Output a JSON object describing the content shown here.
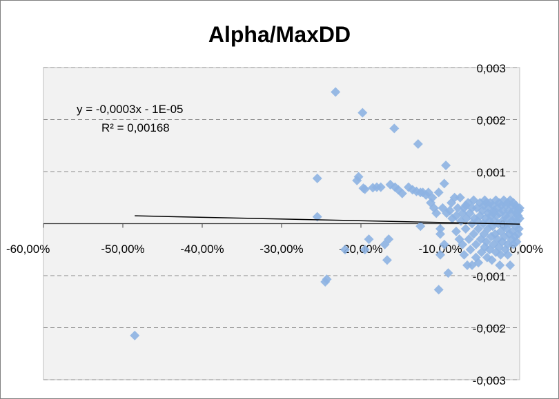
{
  "chart_data": {
    "type": "scatter",
    "title": "Alpha/MaxDD",
    "xlabel": "",
    "ylabel": "",
    "xlim": [
      -0.6,
      0.0
    ],
    "ylim": [
      -0.003,
      0.003
    ],
    "x_tick_values": [
      -0.6,
      -0.5,
      -0.4,
      -0.3,
      -0.2,
      -0.1,
      0.0
    ],
    "x_tick_labels": [
      "-60,00%",
      "-50,00%",
      "-40,00%",
      "-30,00%",
      "-20,00%",
      "-10,00%",
      "0,00%"
    ],
    "y_tick_values": [
      0.003,
      0.002,
      0.001,
      0,
      -0.001,
      -0.002,
      -0.003
    ],
    "y_tick_labels": [
      "0,003",
      "0,002",
      "0,001",
      "0",
      "-0,001",
      "-0,002",
      "-0,003"
    ],
    "grid": "horizontal-dashed",
    "legend": "none",
    "marker_color": "#8db3e2",
    "trendline_color": "#000000",
    "trendline": {
      "slope": -0.0003,
      "intercept": -1e-05,
      "x_range": [
        -0.485,
        0.0
      ],
      "equation_text": "y = -0,0003x - 1E-05",
      "r2_text": "R² = 0,00168"
    },
    "points": [
      [
        -0.485,
        -0.00215
      ],
      [
        -0.255,
        0.00087
      ],
      [
        -0.255,
        0.00013
      ],
      [
        -0.245,
        -0.00112
      ],
      [
        -0.243,
        -0.00107
      ],
      [
        -0.232,
        0.00253
      ],
      [
        -0.22,
        -0.0005
      ],
      [
        -0.205,
        0.00083
      ],
      [
        -0.203,
        0.0009
      ],
      [
        -0.198,
        0.00213
      ],
      [
        -0.197,
        0.00068
      ],
      [
        -0.195,
        0.00066
      ],
      [
        -0.195,
        -0.0005
      ],
      [
        -0.19,
        -0.0003
      ],
      [
        -0.185,
        0.00069
      ],
      [
        -0.18,
        0.0007
      ],
      [
        -0.175,
        0.0007
      ],
      [
        -0.17,
        -0.0004
      ],
      [
        -0.167,
        -0.0007
      ],
      [
        -0.165,
        -0.0003
      ],
      [
        -0.163,
        0.00075
      ],
      [
        -0.158,
        0.00183
      ],
      [
        -0.157,
        0.0007
      ],
      [
        -0.153,
        0.00065
      ],
      [
        -0.148,
        0.00058
      ],
      [
        -0.14,
        0.0007
      ],
      [
        -0.135,
        0.00065
      ],
      [
        -0.13,
        0.00062
      ],
      [
        -0.128,
        0.00153
      ],
      [
        -0.125,
        0.0006
      ],
      [
        -0.122,
        0.0006
      ],
      [
        -0.125,
        -5e-05
      ],
      [
        -0.118,
        0.00055
      ],
      [
        -0.115,
        0.0006
      ],
      [
        -0.112,
        0.0004
      ],
      [
        -0.11,
        0.0005
      ],
      [
        -0.108,
        0.0003
      ],
      [
        -0.105,
        0.0002
      ],
      [
        -0.102,
        0.0006
      ],
      [
        -0.1,
        -0.0001
      ],
      [
        -0.1,
        -0.0002
      ],
      [
        -0.1,
        -0.0006
      ],
      [
        -0.102,
        -0.00127
      ],
      [
        -0.097,
        0.0003
      ],
      [
        -0.095,
        0.00077
      ],
      [
        -0.095,
        -0.0004
      ],
      [
        -0.093,
        0.00112
      ],
      [
        -0.092,
        0.0002
      ],
      [
        -0.09,
        -0.00095
      ],
      [
        -0.088,
        0.00025
      ],
      [
        -0.086,
        0.0004
      ],
      [
        -0.085,
        0.0001
      ],
      [
        -0.082,
        0.0005
      ],
      [
        -0.08,
        0.00015
      ],
      [
        -0.08,
        -0.00015
      ],
      [
        -0.078,
        0.0003
      ],
      [
        -0.076,
        -0.0003
      ],
      [
        -0.075,
        0.0005
      ],
      [
        -0.074,
        5e-05
      ],
      [
        -0.072,
        0.0002
      ],
      [
        -0.07,
        -0.0006
      ],
      [
        -0.07,
        0.0003
      ],
      [
        -0.068,
        -0.0001
      ],
      [
        -0.067,
        0.0001
      ],
      [
        -0.066,
        -0.0008
      ],
      [
        -0.065,
        0.0004
      ],
      [
        -0.064,
        -0.0003
      ],
      [
        -0.063,
        0.0002
      ],
      [
        -0.062,
        -0.0005
      ],
      [
        -0.06,
        0.0
      ],
      [
        -0.06,
        0.0003
      ],
      [
        -0.058,
        -0.0002
      ],
      [
        -0.058,
        0.00045
      ],
      [
        -0.057,
        0.0001
      ],
      [
        -0.055,
        -0.0004
      ],
      [
        -0.055,
        -0.00065
      ],
      [
        -0.054,
        0.0003
      ],
      [
        -0.053,
        5e-05
      ],
      [
        -0.052,
        -0.0001
      ],
      [
        -0.052,
        -0.00075
      ],
      [
        -0.05,
        0.0004
      ],
      [
        -0.05,
        0.00015
      ],
      [
        -0.049,
        -0.0003
      ],
      [
        -0.048,
        -0.00055
      ],
      [
        -0.047,
        0.00025
      ],
      [
        -0.046,
        0.0
      ],
      [
        -0.045,
        0.00035
      ],
      [
        -0.045,
        -0.0002
      ],
      [
        -0.044,
        -0.00045
      ],
      [
        -0.043,
        0.0001
      ],
      [
        -0.042,
        0.0004
      ],
      [
        -0.042,
        -0.00035
      ],
      [
        -0.041,
        -0.00065
      ],
      [
        -0.04,
        0.0002
      ],
      [
        -0.04,
        -0.0001
      ],
      [
        -0.039,
        0.0003
      ],
      [
        -0.038,
        -0.0005
      ],
      [
        -0.038,
        5e-05
      ],
      [
        -0.037,
        0.0004
      ],
      [
        -0.036,
        -0.00025
      ],
      [
        -0.036,
        0.00015
      ],
      [
        -0.035,
        -0.0007
      ],
      [
        -0.034,
        0.00035
      ],
      [
        -0.034,
        -5e-05
      ],
      [
        -0.033,
        -0.0004
      ],
      [
        -0.032,
        0.00025
      ],
      [
        -0.032,
        5e-05
      ],
      [
        -0.031,
        -0.0002
      ],
      [
        -0.03,
        0.00045
      ],
      [
        -0.03,
        -0.00055
      ],
      [
        -0.029,
        0.00015
      ],
      [
        -0.028,
        -0.0003
      ],
      [
        -0.028,
        0.0003
      ],
      [
        -0.027,
        0.0
      ],
      [
        -0.026,
        -0.00045
      ],
      [
        -0.026,
        0.0004
      ],
      [
        -0.025,
        0.0002
      ],
      [
        -0.024,
        -0.00015
      ],
      [
        -0.024,
        -0.0006
      ],
      [
        -0.023,
        0.00035
      ],
      [
        -0.022,
        5e-05
      ],
      [
        -0.022,
        -0.00035
      ],
      [
        -0.021,
        0.00025
      ],
      [
        -0.02,
        -5e-05
      ],
      [
        -0.02,
        0.00045
      ],
      [
        -0.019,
        -0.00025
      ],
      [
        -0.018,
        0.00015
      ],
      [
        -0.018,
        -0.0005
      ],
      [
        -0.017,
        0.00035
      ],
      [
        -0.016,
        -0.0001
      ],
      [
        -0.016,
        0.0001
      ],
      [
        -0.015,
        -0.0004
      ],
      [
        -0.015,
        0.0004
      ],
      [
        -0.014,
        0.00025
      ],
      [
        -0.013,
        -0.0002
      ],
      [
        -0.013,
        0.0
      ],
      [
        -0.012,
        -0.0008
      ],
      [
        -0.012,
        0.00045
      ],
      [
        -0.011,
        0.0002
      ],
      [
        -0.01,
        -0.0003
      ],
      [
        -0.01,
        0.00035
      ],
      [
        -0.009,
        5e-05
      ],
      [
        -0.009,
        -0.00015
      ],
      [
        -0.008,
        0.0004
      ],
      [
        -0.008,
        -0.0004
      ],
      [
        -0.007,
        0.00025
      ],
      [
        -0.006,
        0.0001
      ],
      [
        -0.006,
        -0.00025
      ],
      [
        -0.005,
        0.00035
      ],
      [
        -0.005,
        -5e-05
      ],
      [
        -0.004,
        0.0002
      ],
      [
        -0.004,
        -0.00035
      ],
      [
        -0.003,
        0.0003
      ],
      [
        -0.003,
        5e-05
      ],
      [
        -0.002,
        -0.0002
      ],
      [
        -0.002,
        0.00015
      ],
      [
        -0.001,
        0.00025
      ],
      [
        -0.001,
        -0.0001
      ],
      [
        0.0,
        0.0001
      ],
      [
        0.0,
        0.0003
      ],
      [
        -0.015,
        -0.0006
      ],
      [
        -0.025,
        -0.0008
      ],
      [
        -0.033,
        0.0002
      ],
      [
        -0.044,
        0.00045
      ],
      [
        -0.068,
        0.00035
      ],
      [
        -0.072,
        -0.0004
      ],
      [
        -0.06,
        -0.0008
      ]
    ]
  }
}
